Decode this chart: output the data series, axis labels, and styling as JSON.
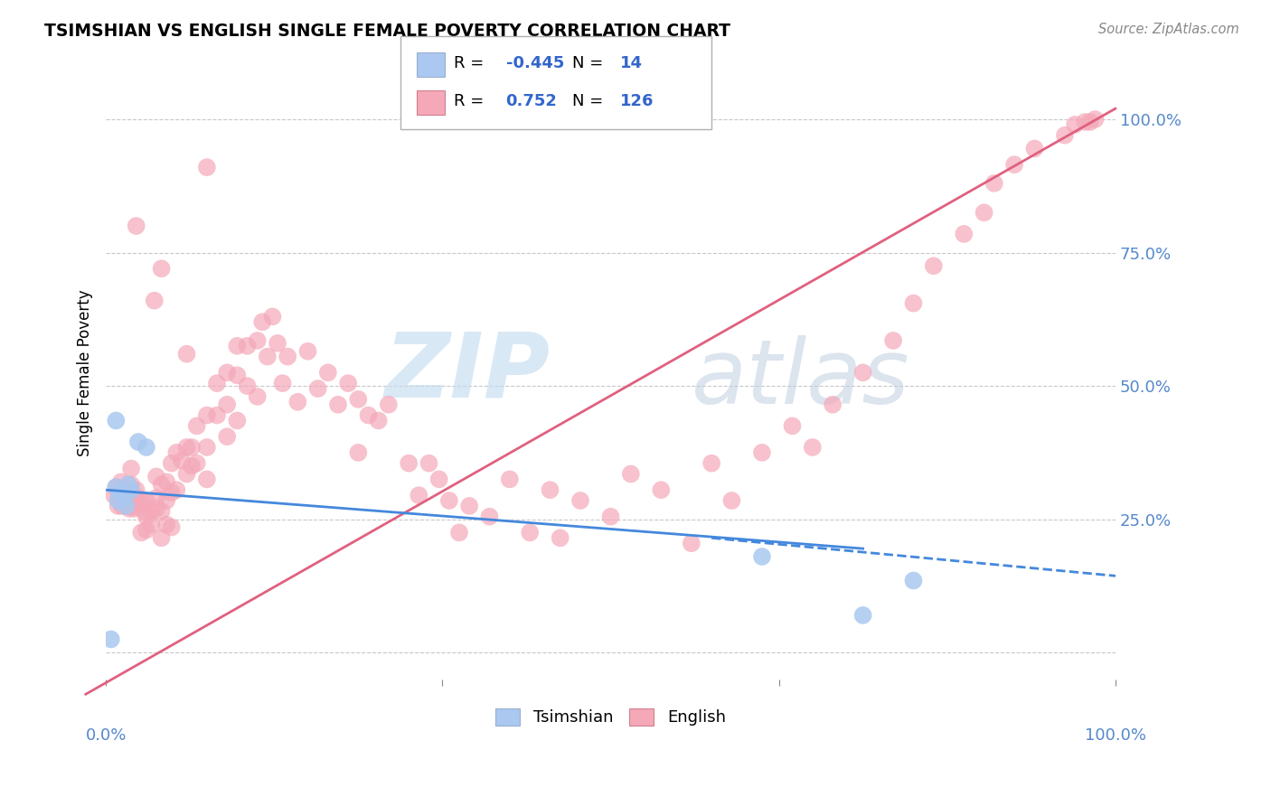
{
  "title": "TSIMSHIAN VS ENGLISH SINGLE FEMALE POVERTY CORRELATION CHART",
  "source": "Source: ZipAtlas.com",
  "ylabel": "Single Female Poverty",
  "r_blue": -0.445,
  "n_blue": 14,
  "r_pink": 0.752,
  "n_pink": 126,
  "blue_color": "#aac8f0",
  "pink_color": "#f4a8b8",
  "blue_line_color": "#4488dd",
  "pink_line_color": "#e06080",
  "legend_label_blue": "Tsimshian",
  "legend_label_pink": "English",
  "xlim": [
    0,
    100
  ],
  "ylim": [
    -5,
    110
  ],
  "xticks": [
    0,
    33.3,
    66.7,
    100
  ],
  "xtick_labels": [
    "0.0%",
    "",
    "",
    "100.0%"
  ],
  "ytick_values": [
    0,
    25,
    50,
    75,
    100
  ],
  "ytick_labels": [
    "",
    "25.0%",
    "50.0%",
    "75.0%",
    "100.0%"
  ],
  "blue_scatter": [
    [
      0.5,
      2.5
    ],
    [
      1.0,
      31.0
    ],
    [
      1.2,
      28.5
    ],
    [
      1.5,
      30.0
    ],
    [
      1.8,
      29.0
    ],
    [
      2.0,
      27.5
    ],
    [
      2.2,
      31.5
    ],
    [
      2.5,
      30.5
    ],
    [
      3.2,
      39.5
    ],
    [
      4.0,
      38.5
    ],
    [
      1.0,
      43.5
    ],
    [
      65.0,
      18.0
    ],
    [
      75.0,
      7.0
    ],
    [
      80.0,
      13.5
    ]
  ],
  "pink_scatter": [
    [
      0.8,
      29.5
    ],
    [
      1.0,
      31.0
    ],
    [
      1.2,
      27.5
    ],
    [
      1.3,
      29.5
    ],
    [
      1.5,
      28.0
    ],
    [
      1.5,
      32.0
    ],
    [
      1.6,
      27.5
    ],
    [
      1.7,
      30.5
    ],
    [
      1.8,
      28.5
    ],
    [
      2.0,
      30.0
    ],
    [
      2.0,
      27.5
    ],
    [
      2.2,
      29.5
    ],
    [
      2.2,
      29.0
    ],
    [
      2.3,
      27.0
    ],
    [
      2.5,
      30.5
    ],
    [
      2.5,
      28.5
    ],
    [
      2.5,
      31.5
    ],
    [
      2.8,
      29.0
    ],
    [
      2.8,
      28.5
    ],
    [
      2.8,
      27.0
    ],
    [
      3.0,
      30.5
    ],
    [
      3.0,
      27.5
    ],
    [
      3.2,
      29.0
    ],
    [
      3.5,
      28.5
    ],
    [
      3.5,
      22.5
    ],
    [
      3.8,
      26.5
    ],
    [
      4.0,
      28.5
    ],
    [
      4.0,
      25.5
    ],
    [
      4.0,
      23.0
    ],
    [
      4.5,
      26.5
    ],
    [
      4.5,
      24.0
    ],
    [
      5.0,
      33.0
    ],
    [
      5.0,
      29.0
    ],
    [
      5.0,
      27.0
    ],
    [
      5.5,
      31.5
    ],
    [
      5.5,
      26.5
    ],
    [
      5.5,
      21.5
    ],
    [
      6.0,
      32.0
    ],
    [
      6.0,
      28.5
    ],
    [
      6.0,
      24.0
    ],
    [
      6.5,
      35.5
    ],
    [
      6.5,
      30.0
    ],
    [
      6.5,
      23.5
    ],
    [
      7.0,
      37.5
    ],
    [
      7.0,
      30.5
    ],
    [
      7.5,
      36.0
    ],
    [
      8.0,
      38.5
    ],
    [
      8.0,
      33.5
    ],
    [
      8.5,
      38.5
    ],
    [
      8.5,
      35.0
    ],
    [
      9.0,
      42.5
    ],
    [
      9.0,
      35.5
    ],
    [
      10.0,
      44.5
    ],
    [
      10.0,
      38.5
    ],
    [
      10.0,
      32.5
    ],
    [
      11.0,
      50.5
    ],
    [
      11.0,
      44.5
    ],
    [
      12.0,
      52.5
    ],
    [
      12.0,
      46.5
    ],
    [
      12.0,
      40.5
    ],
    [
      13.0,
      57.5
    ],
    [
      13.0,
      52.0
    ],
    [
      13.0,
      43.5
    ],
    [
      14.0,
      57.5
    ],
    [
      14.0,
      50.0
    ],
    [
      15.0,
      58.5
    ],
    [
      15.0,
      48.0
    ],
    [
      15.5,
      62.0
    ],
    [
      16.0,
      55.5
    ],
    [
      16.5,
      63.0
    ],
    [
      17.0,
      58.0
    ],
    [
      17.5,
      50.5
    ],
    [
      18.0,
      55.5
    ],
    [
      19.0,
      47.0
    ],
    [
      20.0,
      56.5
    ],
    [
      21.0,
      49.5
    ],
    [
      22.0,
      52.5
    ],
    [
      23.0,
      46.5
    ],
    [
      24.0,
      50.5
    ],
    [
      25.0,
      47.5
    ],
    [
      26.0,
      44.5
    ],
    [
      27.0,
      43.5
    ],
    [
      28.0,
      46.5
    ],
    [
      30.0,
      35.5
    ],
    [
      31.0,
      29.5
    ],
    [
      32.0,
      35.5
    ],
    [
      33.0,
      32.5
    ],
    [
      34.0,
      28.5
    ],
    [
      35.0,
      22.5
    ],
    [
      36.0,
      27.5
    ],
    [
      38.0,
      25.5
    ],
    [
      40.0,
      32.5
    ],
    [
      42.0,
      22.5
    ],
    [
      44.0,
      30.5
    ],
    [
      45.0,
      21.5
    ],
    [
      47.0,
      28.5
    ],
    [
      50.0,
      25.5
    ],
    [
      52.0,
      33.5
    ],
    [
      55.0,
      30.5
    ],
    [
      58.0,
      20.5
    ],
    [
      60.0,
      35.5
    ],
    [
      62.0,
      28.5
    ],
    [
      65.0,
      37.5
    ],
    [
      68.0,
      42.5
    ],
    [
      70.0,
      38.5
    ],
    [
      72.0,
      46.5
    ],
    [
      75.0,
      52.5
    ],
    [
      78.0,
      58.5
    ],
    [
      80.0,
      65.5
    ],
    [
      82.0,
      72.5
    ],
    [
      85.0,
      78.5
    ],
    [
      87.0,
      82.5
    ],
    [
      88.0,
      88.0
    ],
    [
      90.0,
      91.5
    ],
    [
      92.0,
      94.5
    ],
    [
      95.0,
      97.0
    ],
    [
      96.0,
      99.0
    ],
    [
      97.0,
      99.5
    ],
    [
      97.5,
      99.5
    ],
    [
      98.0,
      100.0
    ],
    [
      10.0,
      91.0
    ],
    [
      2.5,
      34.5
    ],
    [
      3.0,
      80.0
    ],
    [
      4.8,
      66.0
    ],
    [
      5.5,
      72.0
    ],
    [
      8.0,
      56.0
    ],
    [
      25.0,
      37.5
    ]
  ],
  "pink_line": [
    [
      -2,
      -7.8
    ],
    [
      100,
      102
    ]
  ],
  "blue_line_solid": [
    [
      -2,
      30.8
    ],
    [
      75,
      19.5
    ]
  ],
  "blue_line_dash": [
    [
      60,
      21.5
    ],
    [
      105,
      13.5
    ]
  ]
}
